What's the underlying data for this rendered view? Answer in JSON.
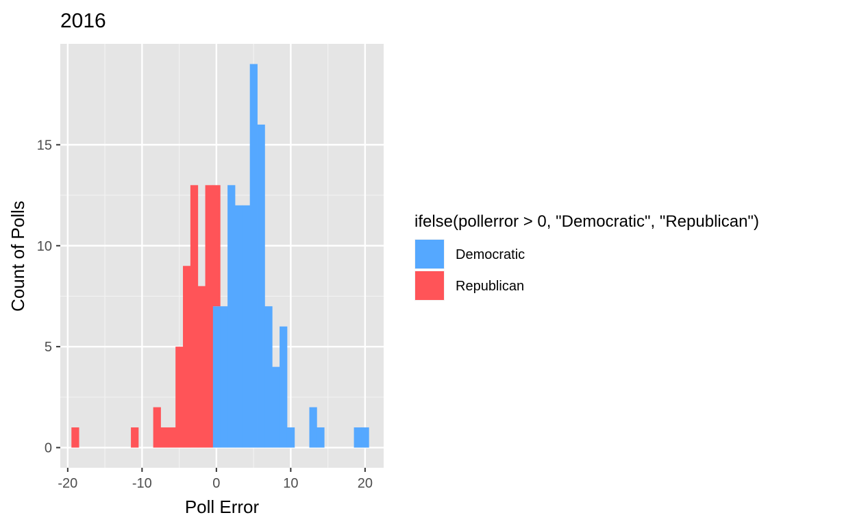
{
  "chart_data": {
    "type": "bar",
    "title": "2016",
    "xlabel": "Poll Error",
    "ylabel": "Count of Polls",
    "xlim": [
      -21,
      22.5
    ],
    "ylim": [
      -1,
      20
    ],
    "x_ticks": [
      -20,
      -10,
      0,
      10,
      20
    ],
    "y_ticks": [
      0,
      5,
      10,
      15
    ],
    "x_tick_labels": [
      "-20",
      "-10",
      "0",
      "10",
      "20"
    ],
    "y_tick_labels": [
      "0",
      "5",
      "10",
      "15"
    ],
    "grid": true,
    "bin_width": 1,
    "legend": {
      "title": "ifelse(pollerror > 0, \"Democratic\", \"Republican\")",
      "position": "right",
      "entries": [
        "Democratic",
        "Republican"
      ]
    },
    "series": [
      {
        "name": "Democratic",
        "color": "#55A8FF",
        "x": [
          0,
          1,
          2,
          3,
          4,
          5,
          6,
          7,
          8,
          9,
          10,
          11,
          12,
          13,
          14,
          15,
          16,
          17,
          18,
          19,
          20
        ],
        "values": [
          7,
          7,
          13,
          12,
          12,
          19,
          16,
          7,
          4,
          6,
          1,
          0,
          0,
          2,
          1,
          0,
          0,
          0,
          0,
          1,
          1
        ]
      },
      {
        "name": "Republican",
        "color": "#FF5458",
        "x": [
          -19,
          -11,
          -8,
          -7,
          -6,
          -5,
          -4,
          -3,
          -2,
          -1,
          0
        ],
        "values": [
          1,
          1,
          2,
          1,
          1,
          5,
          9,
          13,
          8,
          13,
          6
        ]
      }
    ]
  }
}
